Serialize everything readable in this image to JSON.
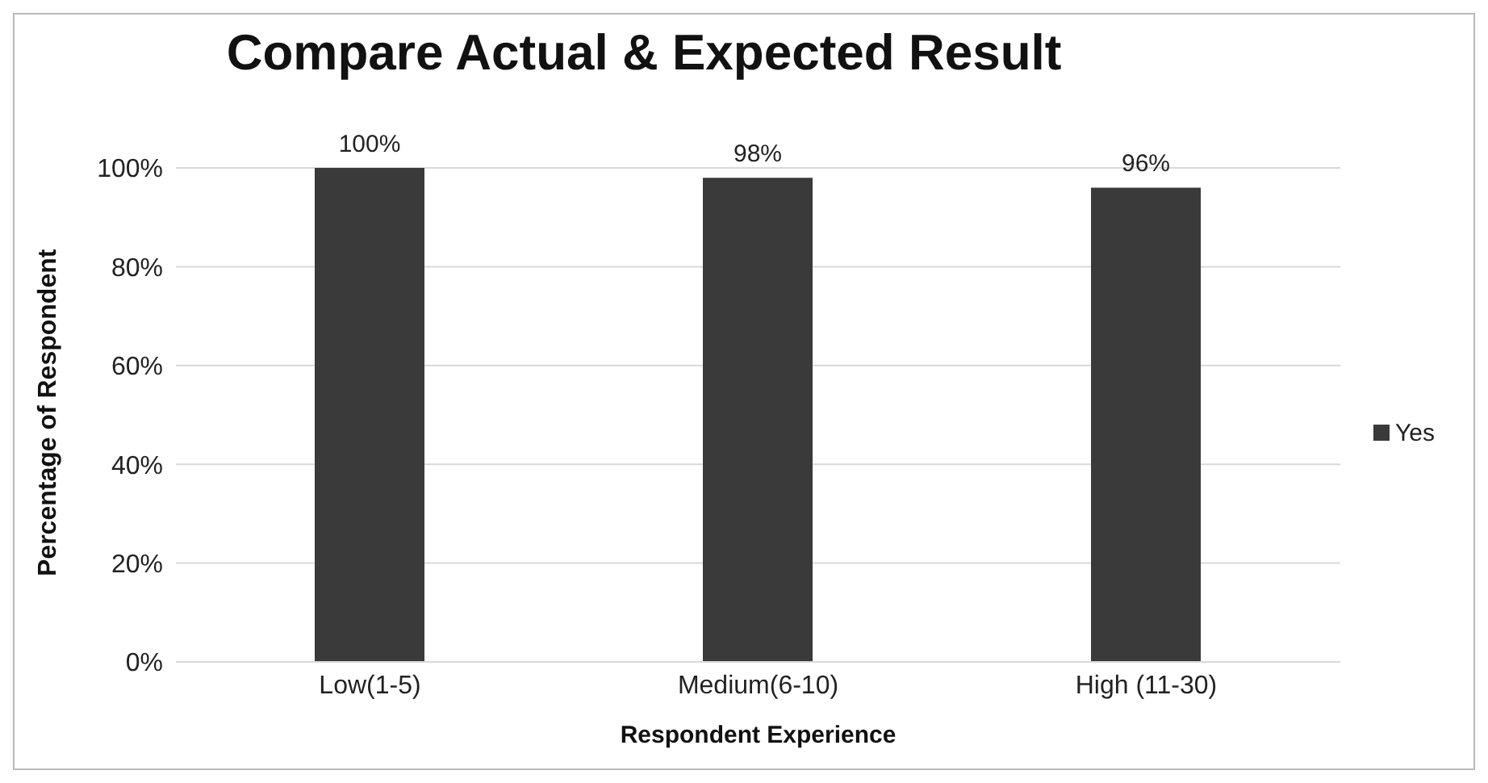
{
  "chart_data": {
    "type": "bar",
    "title": "Compare Actual & Expected Result",
    "xlabel": "Respondent Experience",
    "ylabel": "Percentage of Respondent",
    "categories": [
      "Low(1-5)",
      "Medium(6-10)",
      "High (11-30)"
    ],
    "series": [
      {
        "name": "Yes",
        "color": "#3a3a3a",
        "values": [
          100,
          98,
          96
        ],
        "value_labels": [
          "100%",
          "98%",
          "96%"
        ]
      }
    ],
    "ylim": [
      0,
      100
    ],
    "yticks": [
      {
        "value": 0,
        "label": "0%"
      },
      {
        "value": 20,
        "label": "20%"
      },
      {
        "value": 40,
        "label": "40%"
      },
      {
        "value": 60,
        "label": "60%"
      },
      {
        "value": 80,
        "label": "80%"
      },
      {
        "value": 100,
        "label": "100%"
      }
    ],
    "grid": "y",
    "legend": "right"
  }
}
